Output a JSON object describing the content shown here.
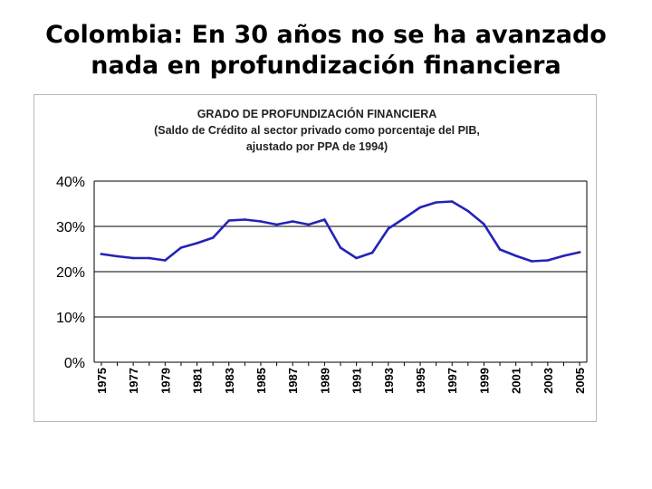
{
  "slide": {
    "title_line1": "Colombia: En 30 años no se ha avanzado",
    "title_line2": "nada en profundización financiera"
  },
  "colors": {
    "line": "#2323b8",
    "grid": "#000000",
    "frame": "#b9b9b9"
  },
  "chart_data": {
    "type": "line",
    "title": "GRADO DE PROFUNDIZACIÓN FINANCIERA",
    "subtitle": [
      "(Saldo de Crédito al sector privado como porcentaje del PIB,",
      "ajustado por PPA de 1994)"
    ],
    "xlabel": "",
    "ylabel": "",
    "ylim": [
      0,
      40
    ],
    "yticks": [
      0,
      10,
      20,
      30,
      40
    ],
    "ytick_labels": [
      "0%",
      "10%",
      "20%",
      "30%",
      "40%"
    ],
    "grid": true,
    "x": [
      1975,
      1976,
      1977,
      1978,
      1979,
      1980,
      1981,
      1982,
      1983,
      1984,
      1985,
      1986,
      1987,
      1988,
      1989,
      1990,
      1991,
      1992,
      1993,
      1994,
      1995,
      1996,
      1997,
      1998,
      1999,
      2000,
      2001,
      2002,
      2003,
      2004,
      2005
    ],
    "xtick_labels": [
      "1975",
      "1977",
      "1979",
      "1981",
      "1983",
      "1985",
      "1987",
      "1989",
      "1991",
      "1993",
      "1995",
      "1997",
      "1999",
      "2001",
      "2003",
      "2005"
    ],
    "series": [
      {
        "name": "Grado de profundización financiera",
        "values": [
          23.9,
          23.4,
          23.0,
          23.0,
          22.5,
          25.3,
          26.3,
          27.5,
          31.3,
          31.5,
          31.1,
          30.4,
          31.1,
          30.4,
          31.5,
          25.3,
          23.0,
          24.2,
          29.5,
          31.8,
          34.2,
          35.3,
          35.5,
          33.4,
          30.5,
          24.9,
          23.5,
          22.3,
          22.5,
          23.5,
          24.3
        ]
      }
    ]
  }
}
